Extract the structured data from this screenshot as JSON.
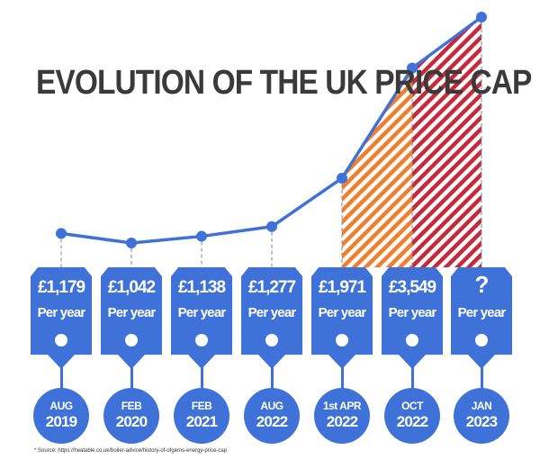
{
  "title": "EVOLUTION OF THE UK PRICE CAP",
  "source": "* Source: https://heatable.co.uk/boiler-advice/history-of-ofgems-energy-price-cap",
  "colors": {
    "line": "#3F72D8",
    "card": "#3F72D8",
    "hatch_orange": "#F07E2C",
    "hatch_red": "#C8283A",
    "connector": "#9a9a9a"
  },
  "chart_data": {
    "type": "line",
    "title": "EVOLUTION OF THE UK PRICE CAP",
    "unit_label": "Per year",
    "categories": [
      {
        "top": "AUG",
        "bottom": "2019"
      },
      {
        "top": "FEB",
        "bottom": "2020"
      },
      {
        "top": "FEB",
        "bottom": "2021"
      },
      {
        "top": "AUG",
        "bottom": "2022"
      },
      {
        "top": "1st APR",
        "bottom": "2022"
      },
      {
        "top": "OCT",
        "bottom": "2022"
      },
      {
        "top": "JAN",
        "bottom": "2023"
      }
    ],
    "labels": [
      "£1,179",
      "£1,042",
      "£1,138",
      "£1,277",
      "£1,971",
      "£3,549",
      "?"
    ],
    "values": [
      1179,
      1042,
      1138,
      1277,
      1971,
      3549,
      4279
    ],
    "hatched_segments": [
      {
        "from_index": 4,
        "to_index": 5,
        "color": "orange"
      },
      {
        "from_index": 5,
        "to_index": 6,
        "color": "red"
      }
    ],
    "axes_visible": false,
    "grid": false
  }
}
